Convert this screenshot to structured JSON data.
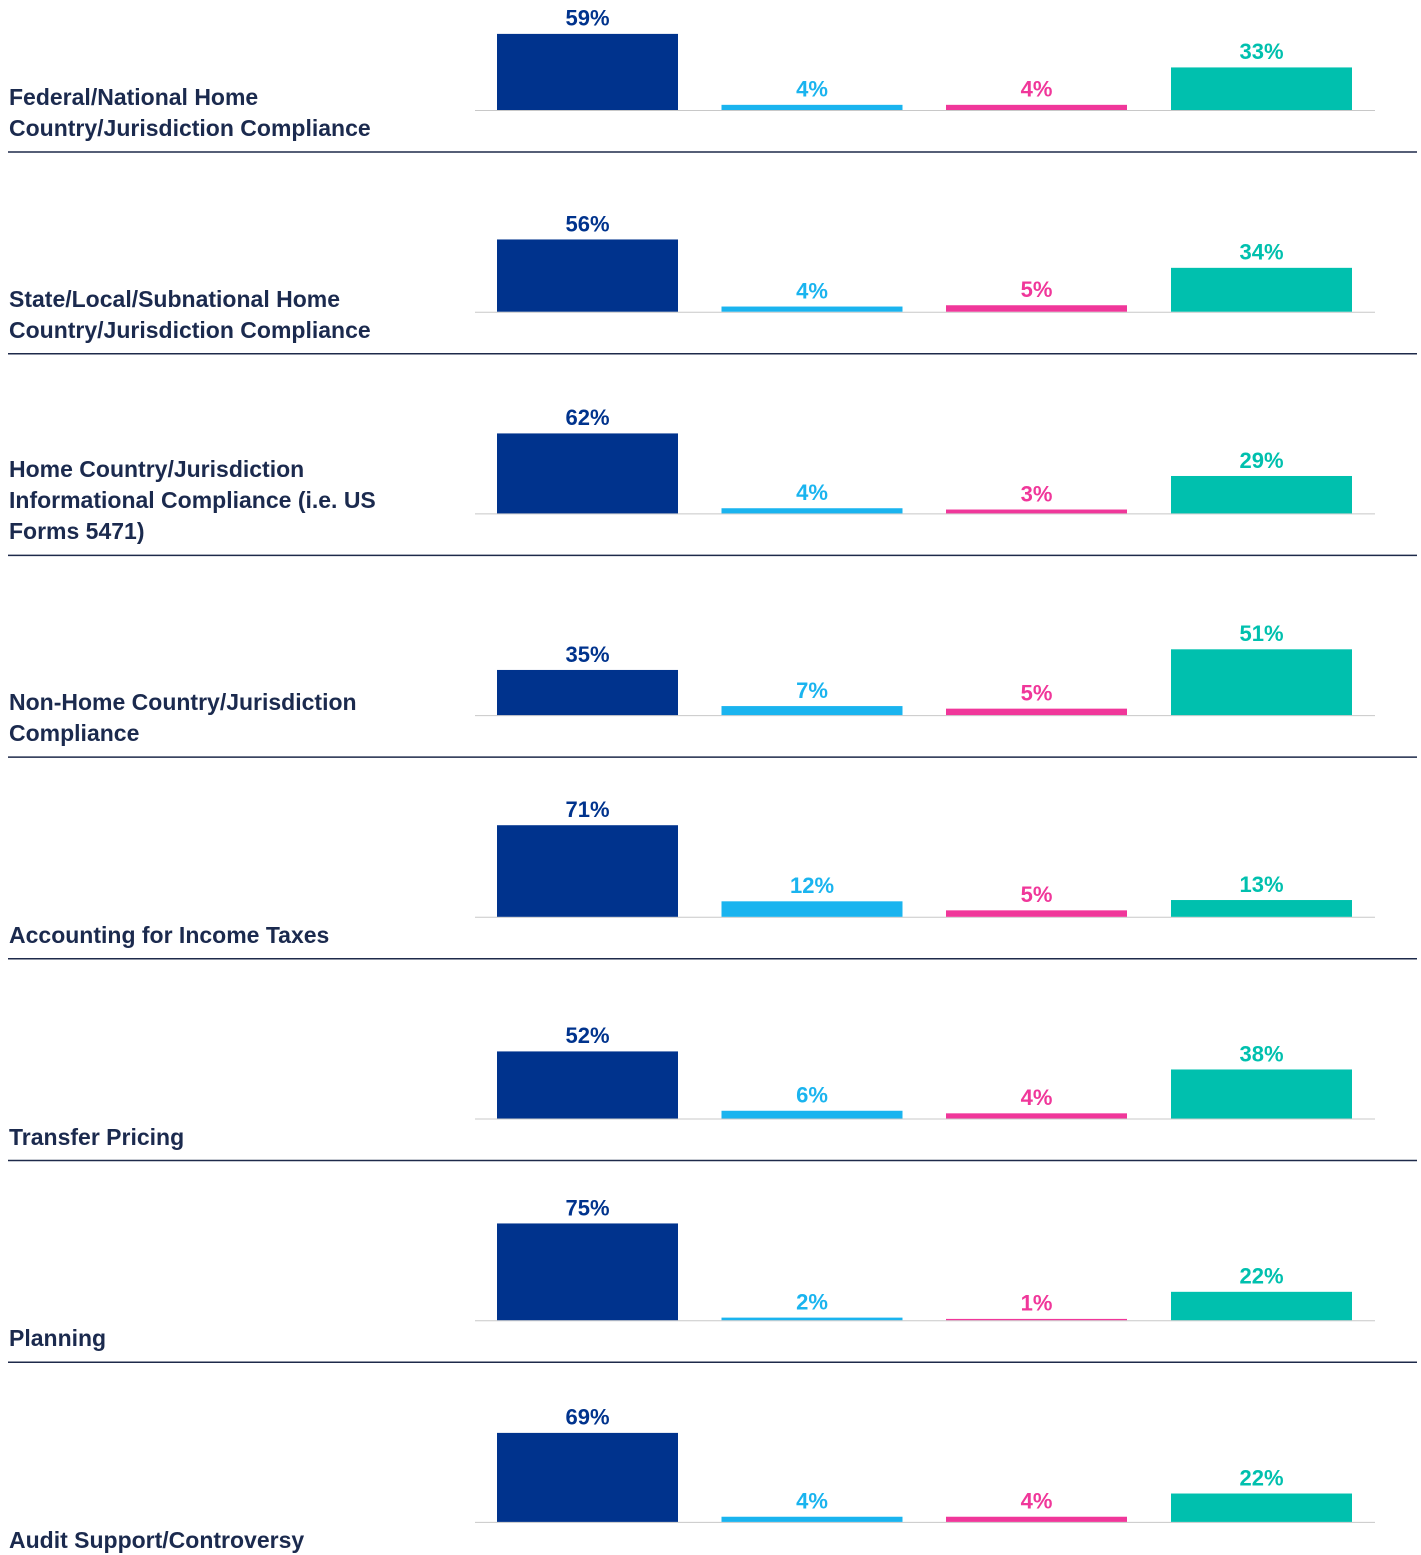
{
  "chart_data": {
    "type": "bar",
    "categories": [
      "Federal/National Home Country/Jurisdiction Compliance",
      "State/Local/Subnational Home Country/Jurisdiction Compliance",
      "Home Country/Jurisdiction Informational Compliance (i.e. US Forms 5471)",
      "Non-Home Country/Jurisdiction Compliance",
      "Accounting for Income Taxes",
      "Transfer Pricing",
      "Planning",
      "Audit Support/Controversy"
    ],
    "ylim": [
      0,
      100
    ],
    "series": [
      {
        "color": "#00338d",
        "values": [
          59,
          56,
          62,
          35,
          71,
          52,
          75,
          69
        ],
        "value_labels": [
          "59%",
          "56%",
          "62%",
          "35%",
          "71%",
          "52%",
          "75%",
          "69%"
        ]
      },
      {
        "color": "#1ab4ef",
        "values": [
          4,
          4,
          4,
          7,
          12,
          6,
          2,
          4
        ],
        "value_labels": [
          "4%",
          "4%",
          "4%",
          "7%",
          "12%",
          "6%",
          "2%",
          "4%"
        ]
      },
      {
        "color": "#f0379a",
        "values": [
          4,
          5,
          3,
          5,
          5,
          4,
          1,
          4
        ],
        "value_labels": [
          "4%",
          "5%",
          "3%",
          "5%",
          "5%",
          "4%",
          "1%",
          "4%"
        ]
      },
      {
        "color": "#00c0ae",
        "values": [
          33,
          34,
          29,
          51,
          13,
          38,
          22,
          22
        ],
        "value_labels": [
          "33%",
          "34%",
          "29%",
          "51%",
          "13%",
          "38%",
          "22%",
          "22%"
        ]
      }
    ]
  }
}
